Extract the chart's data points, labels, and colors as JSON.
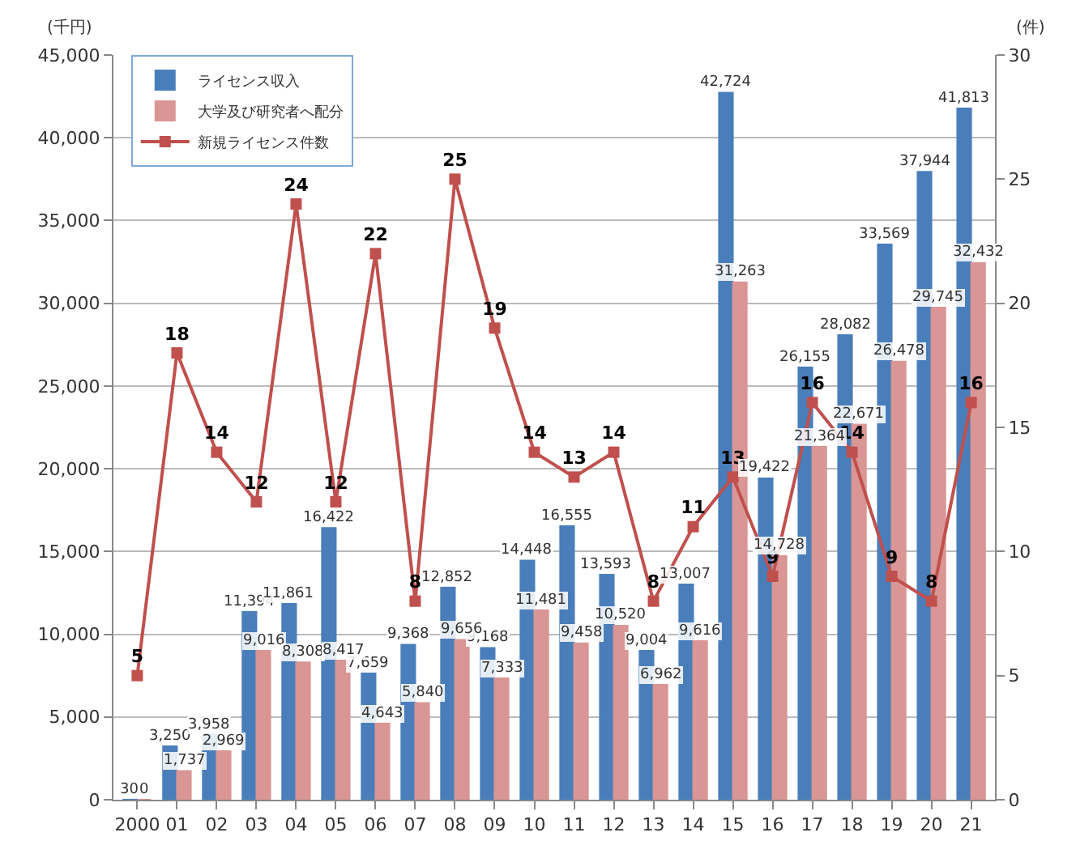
{
  "chart_data": {
    "type": "bar",
    "ylabel": "(千円)",
    "y2label": "(件)",
    "categories": [
      "2000",
      "01",
      "02",
      "03",
      "04",
      "05",
      "06",
      "07",
      "08",
      "09",
      "10",
      "11",
      "12",
      "13",
      "14",
      "15",
      "16",
      "17",
      "18",
      "19",
      "20",
      "21"
    ],
    "series": [
      {
        "name": "ライセンス収入",
        "color": "#4a7ebb",
        "values": [
          30,
          3250,
          3958,
          11394,
          11861,
          16422,
          7659,
          9368,
          12852,
          9168,
          14448,
          16555,
          13593,
          9004,
          13007,
          42724,
          19422,
          26155,
          28082,
          33569,
          37944,
          41813
        ],
        "value_labels": [
          "30",
          "3,250",
          "3,958",
          "11,394",
          "11,861",
          "16,422",
          "7,659",
          "9,368",
          "12,852",
          "9,168",
          "14,448",
          "16,555",
          "13,593",
          "9,004",
          "13,007",
          "42,724",
          "19,422",
          "26,155",
          "28,082",
          "33,569",
          "37,944",
          "41,813"
        ]
      },
      {
        "name": "大学及び研究者へ配分",
        "color": "#d99694",
        "values": [
          0,
          1737,
          2969,
          9016,
          8308,
          8417,
          4643,
          5840,
          9656,
          7333,
          11481,
          9458,
          10520,
          6962,
          9616,
          31263,
          14728,
          21364,
          22671,
          26478,
          29745,
          32432
        ],
        "value_labels": [
          "0",
          "1,737",
          "2,969",
          "9,016",
          "8,308",
          "8,417",
          "4,643",
          "5,840",
          "9,656",
          "7,333",
          "11,481",
          "9,458",
          "10,520",
          "6,962",
          "9,616",
          "31,263",
          "14,728",
          "21,364",
          "22,671",
          "26,478",
          "29,745",
          "32,432"
        ]
      },
      {
        "name": "新規ライセンス件数",
        "color": "#c0504d",
        "type": "line",
        "axis": "y2",
        "marker": "square",
        "values": [
          5,
          18,
          14,
          12,
          24,
          12,
          22,
          8,
          25,
          19,
          14,
          13,
          14,
          8,
          11,
          13,
          9,
          16,
          14,
          9,
          8,
          16
        ]
      }
    ],
    "ylim": [
      0,
      45000
    ],
    "yticks": [
      {
        "value": 0,
        "label": "0"
      },
      {
        "value": 5000,
        "label": "5,000"
      },
      {
        "value": 10000,
        "label": "10,000"
      },
      {
        "value": 15000,
        "label": "15,000"
      },
      {
        "value": 20000,
        "label": "20,000"
      },
      {
        "value": 25000,
        "label": "25,000"
      },
      {
        "value": 30000,
        "label": "30,000"
      },
      {
        "value": 35000,
        "label": "35,000"
      },
      {
        "value": 40000,
        "label": "40,000"
      },
      {
        "value": 45000,
        "label": "45,000"
      }
    ],
    "y2lim": [
      0,
      30
    ],
    "y2ticks": [
      0,
      5,
      10,
      15,
      20,
      25,
      30
    ],
    "data_labels": true,
    "grid": "y",
    "legend": "top left"
  }
}
